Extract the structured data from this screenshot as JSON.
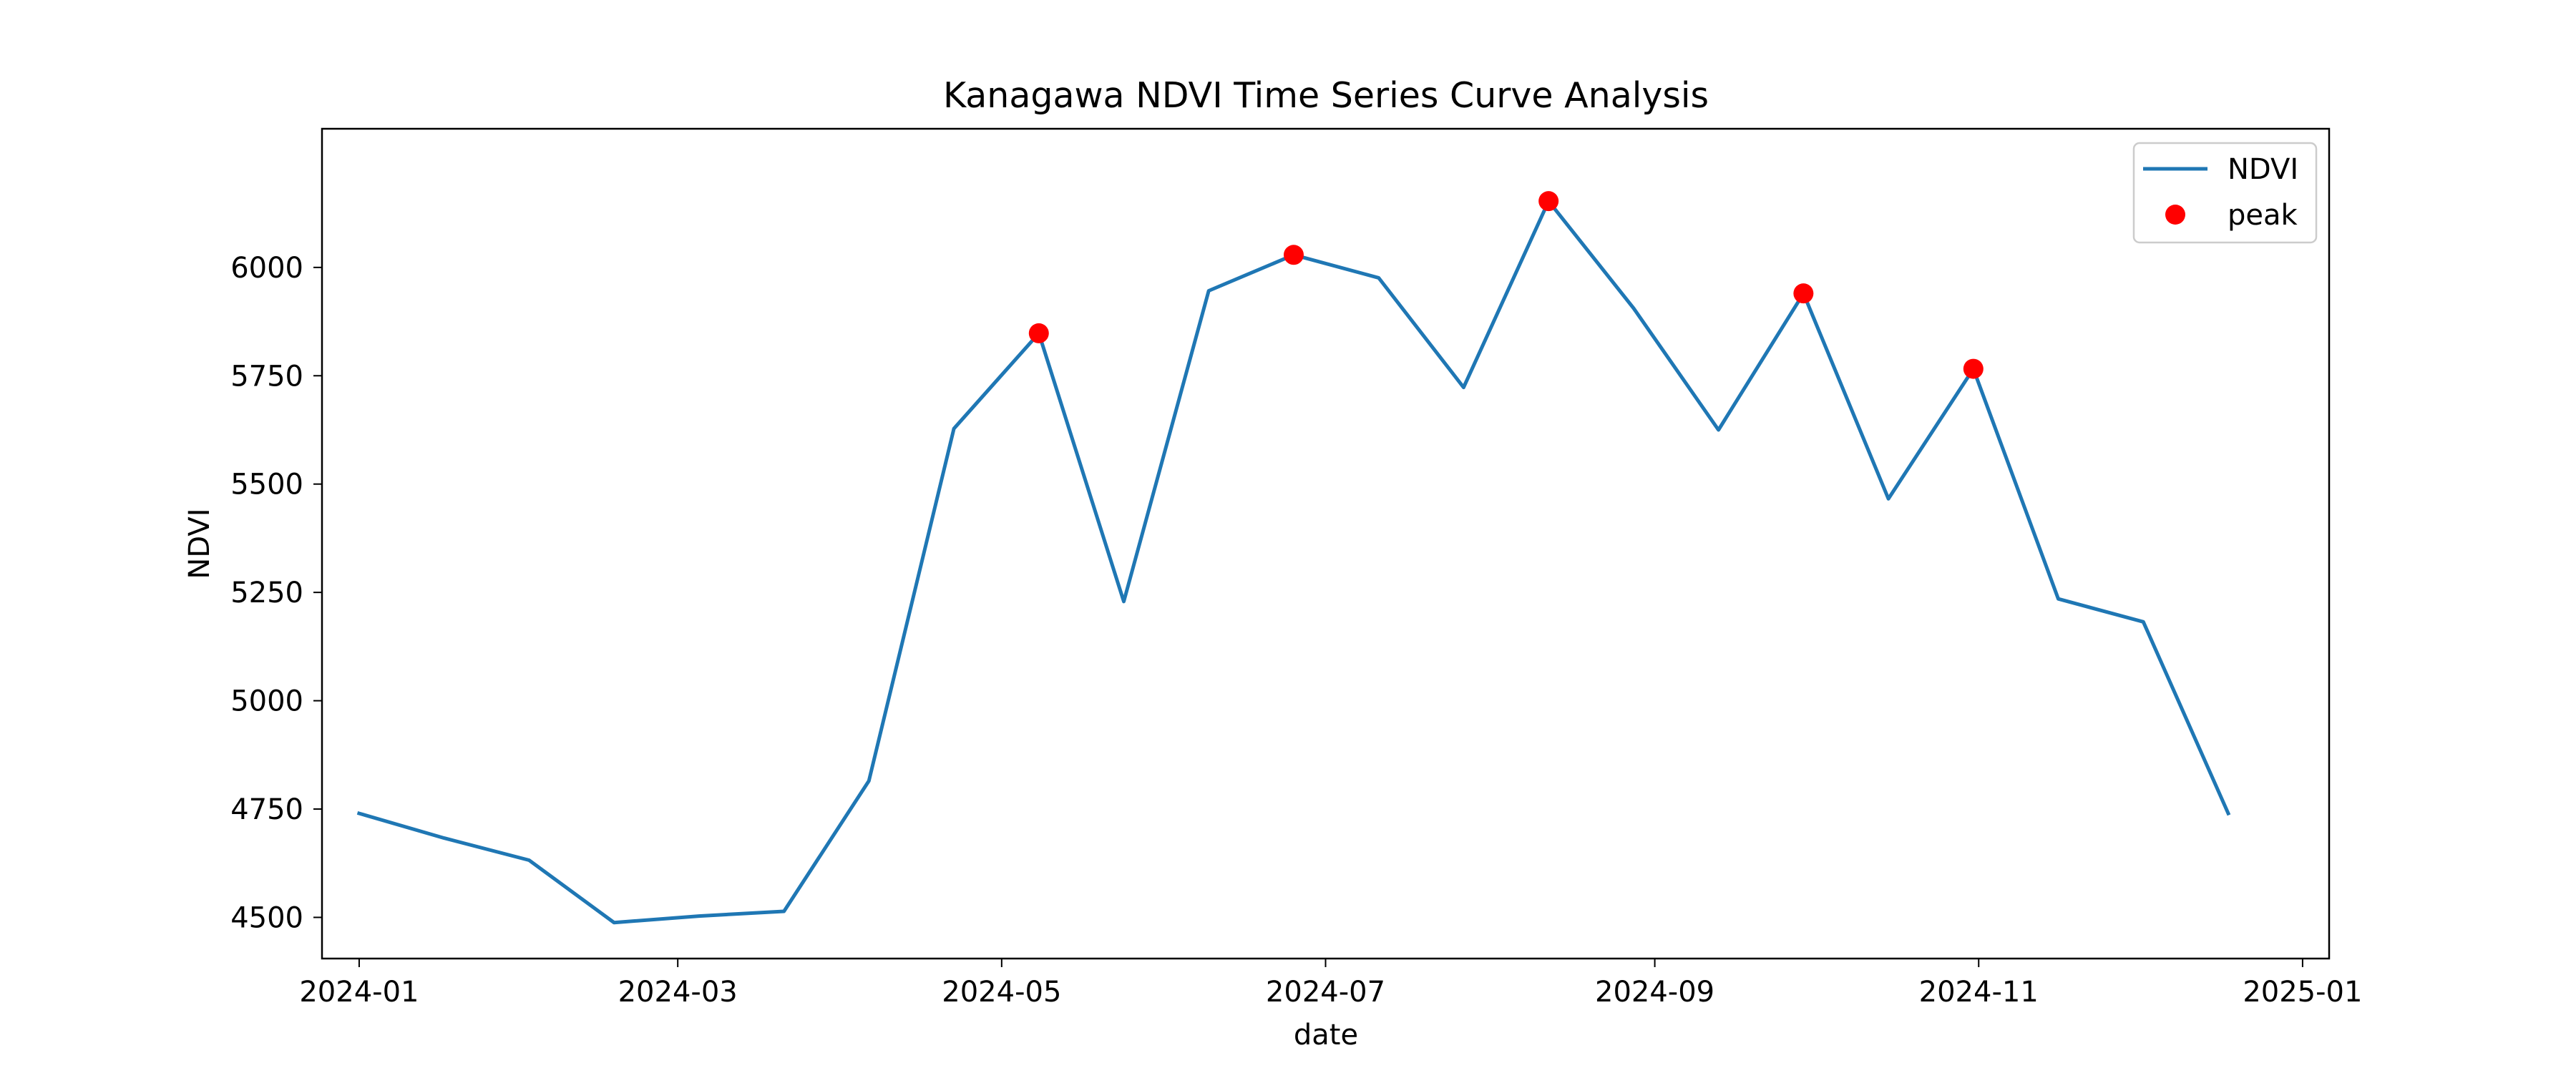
{
  "chart_data": {
    "type": "line",
    "title": "Kanagawa NDVI Time Series Curve Analysis",
    "xlabel": "date",
    "ylabel": "NDVI",
    "x_axis_type": "date",
    "xlim": [
      "2023-12-25",
      "2025-01-06"
    ],
    "ylim": [
      4405,
      6320
    ],
    "x_ticks": [
      "2024-01",
      "2024-03",
      "2024-05",
      "2024-07",
      "2024-09",
      "2024-11",
      "2025-01"
    ],
    "y_ticks": [
      4500,
      4750,
      5000,
      5250,
      5500,
      5750,
      6000
    ],
    "grid": false,
    "legend_position": "top-right",
    "series": [
      {
        "name": "NDVI",
        "kind": "line",
        "color": "#1f77b4",
        "points": [
          {
            "x": "2024-01-01",
            "y": 4740
          },
          {
            "x": "2024-01-17",
            "y": 4683
          },
          {
            "x": "2024-02-02",
            "y": 4632
          },
          {
            "x": "2024-02-18",
            "y": 4488
          },
          {
            "x": "2024-03-05",
            "y": 4503
          },
          {
            "x": "2024-03-21",
            "y": 4514
          },
          {
            "x": "2024-04-06",
            "y": 4815
          },
          {
            "x": "2024-04-22",
            "y": 5628
          },
          {
            "x": "2024-05-08",
            "y": 5848
          },
          {
            "x": "2024-05-24",
            "y": 5229
          },
          {
            "x": "2024-06-09",
            "y": 5946
          },
          {
            "x": "2024-06-25",
            "y": 6029
          },
          {
            "x": "2024-07-11",
            "y": 5976
          },
          {
            "x": "2024-07-27",
            "y": 5723
          },
          {
            "x": "2024-08-12",
            "y": 6153
          },
          {
            "x": "2024-08-28",
            "y": 5906
          },
          {
            "x": "2024-09-13",
            "y": 5625
          },
          {
            "x": "2024-09-29",
            "y": 5940
          },
          {
            "x": "2024-10-15",
            "y": 5466
          },
          {
            "x": "2024-10-31",
            "y": 5766
          },
          {
            "x": "2024-11-16",
            "y": 5235
          },
          {
            "x": "2024-12-02",
            "y": 5182
          },
          {
            "x": "2024-12-18",
            "y": 4740
          }
        ]
      },
      {
        "name": "peak",
        "kind": "scatter",
        "color": "#ff0000",
        "points": [
          {
            "x": "2024-05-08",
            "y": 5848
          },
          {
            "x": "2024-06-25",
            "y": 6029
          },
          {
            "x": "2024-08-12",
            "y": 6153
          },
          {
            "x": "2024-09-29",
            "y": 5940
          },
          {
            "x": "2024-10-31",
            "y": 5766
          }
        ]
      }
    ]
  }
}
